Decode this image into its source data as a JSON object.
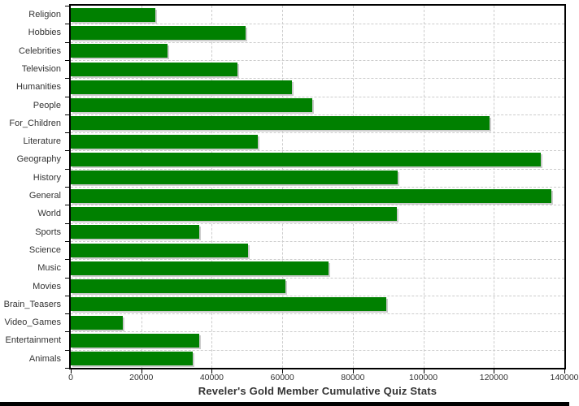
{
  "chart_data": {
    "type": "bar",
    "orientation": "horizontal",
    "title": "Reveler's Gold Member Cumulative Quiz Stats",
    "categories": [
      "Religion",
      "Hobbies",
      "Celebrities",
      "Television",
      "Humanities",
      "People",
      "For_Children",
      "Literature",
      "Geography",
      "History",
      "General",
      "World",
      "Sports",
      "Science",
      "Music",
      "Movies",
      "Brain_Teasers",
      "Video_Games",
      "Entertainment",
      "Animals"
    ],
    "values": [
      23900,
      49700,
      27500,
      47300,
      62700,
      68400,
      118700,
      53000,
      133400,
      92700,
      136200,
      92400,
      36400,
      50300,
      73100,
      61000,
      89600,
      14800,
      36500,
      34700
    ],
    "xlim": [
      0,
      140000
    ],
    "x_ticks": [
      0,
      20000,
      40000,
      60000,
      80000,
      100000,
      120000,
      140000
    ],
    "x_tick_labels": [
      "0",
      "20000",
      "40000",
      "60000",
      "80000",
      "100000",
      "120000",
      "140000"
    ],
    "xlabel": "",
    "ylabel": "",
    "grid": "dashed-both-axes",
    "legend": "none",
    "colors": {
      "bar": "#008000",
      "bar_shadow": "#cccccc",
      "grid": "#cccccc",
      "axis": "#000000",
      "text": "#333333",
      "background": "#ffffff",
      "bottom_strip": "#000000"
    }
  }
}
